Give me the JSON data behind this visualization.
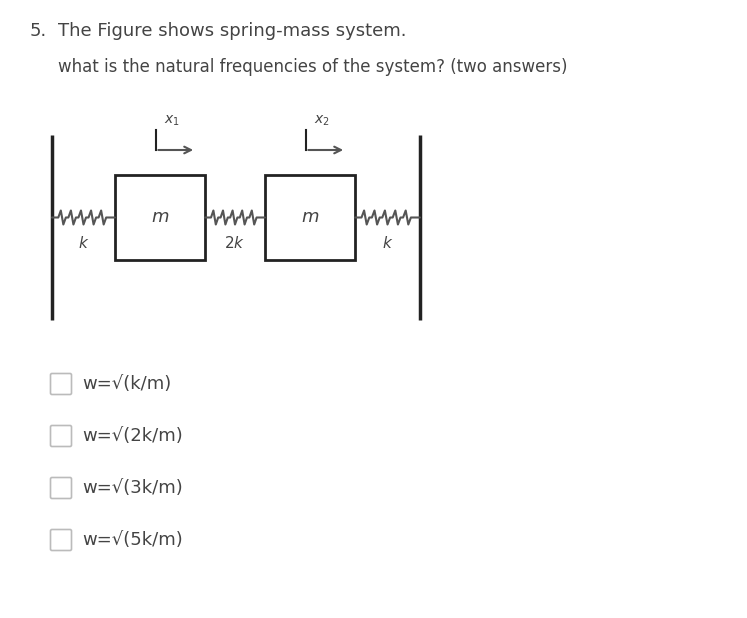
{
  "title_number": "5.",
  "title_text": "The Figure shows spring-mass system.",
  "subtitle_text": "what is the natural frequencies of the system? (two answers)",
  "bg_color": "#ffffff",
  "text_color": "#444444",
  "checkbox_options": [
    "w=√(k/m)",
    "w=√(2k/m)",
    "w=√(3k/m)",
    "w=√(5k/m)"
  ],
  "spring_color": "#555555",
  "wall_color": "#222222",
  "box_color": "#ffffff",
  "box_edge_color": "#222222",
  "arrow_color": "#555555",
  "font_size_title": 13,
  "font_size_subtitle": 12,
  "font_size_checkbox": 13
}
